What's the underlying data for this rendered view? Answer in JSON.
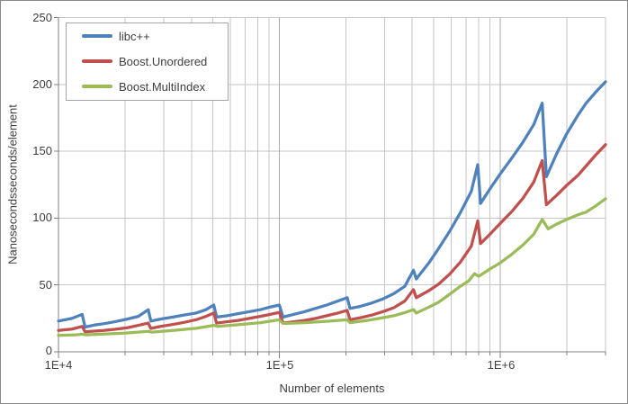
{
  "axes": {
    "y_title": "Nanosecondsseconds/element",
    "x_title": "Number of elements",
    "y_tick_labels": [
      "250",
      "200",
      "150",
      "100",
      "50",
      "0"
    ],
    "x_tick_labels": [
      "1E+4",
      "1E+5",
      "1E+6"
    ]
  },
  "style": {
    "gridline_minor_color": "#c6c6c6",
    "gridline_major_color": "#a9a9a9",
    "axis_color": "#808080",
    "text_color": "#3f3f3f",
    "plot_background": "#ffffff"
  },
  "chart_data": {
    "type": "line",
    "title": "",
    "xlabel": "Number of elements",
    "ylabel": "Nanosecondsseconds/element",
    "x_scale": "log",
    "xlim": [
      10000,
      3000000
    ],
    "ylim": [
      0,
      250
    ],
    "grid": true,
    "legend_position": "top-left-inside",
    "y_tick_values": [
      0,
      50,
      100,
      150,
      200,
      250
    ],
    "x_major_tick_values": [
      10000,
      100000,
      1000000
    ],
    "x_major_gridlines": [
      100000,
      1000000
    ],
    "x_minor_gridlines": [
      20000,
      30000,
      40000,
      50000,
      60000,
      70000,
      80000,
      90000,
      200000,
      300000,
      400000,
      500000,
      600000,
      700000,
      800000,
      900000,
      2000000,
      3000000
    ],
    "series": [
      {
        "name": "libc++",
        "color": "#4F81BD",
        "points": [
          [
            10000,
            23
          ],
          [
            11500,
            25
          ],
          [
            12800,
            28
          ],
          [
            13200,
            18.5
          ],
          [
            14500,
            20
          ],
          [
            16000,
            21
          ],
          [
            18000,
            22.5
          ],
          [
            20500,
            24.5
          ],
          [
            23000,
            26.5
          ],
          [
            25500,
            31.5
          ],
          [
            26200,
            23
          ],
          [
            29000,
            24.5
          ],
          [
            33000,
            26
          ],
          [
            37000,
            27.5
          ],
          [
            42000,
            29
          ],
          [
            46500,
            31.5
          ],
          [
            50500,
            35
          ],
          [
            52000,
            26
          ],
          [
            58000,
            27
          ],
          [
            65000,
            28.5
          ],
          [
            73000,
            30
          ],
          [
            82000,
            31.5
          ],
          [
            91000,
            33.5
          ],
          [
            100000,
            35
          ],
          [
            104000,
            26
          ],
          [
            116000,
            28
          ],
          [
            130000,
            30
          ],
          [
            146000,
            32.5
          ],
          [
            164000,
            35
          ],
          [
            184000,
            38
          ],
          [
            203000,
            40.5
          ],
          [
            209000,
            32.5
          ],
          [
            233000,
            34
          ],
          [
            262000,
            36.5
          ],
          [
            294000,
            39.5
          ],
          [
            330000,
            43.5
          ],
          [
            370000,
            49
          ],
          [
            405000,
            61
          ],
          [
            417000,
            54.5
          ],
          [
            478000,
            67
          ],
          [
            525000,
            77
          ],
          [
            590000,
            90
          ],
          [
            660000,
            104
          ],
          [
            740000,
            120
          ],
          [
            792000,
            140
          ],
          [
            815000,
            111
          ],
          [
            900000,
            122
          ],
          [
            1000000,
            133
          ],
          [
            1130000,
            145
          ],
          [
            1270000,
            157
          ],
          [
            1420000,
            170
          ],
          [
            1550000,
            186
          ],
          [
            1620000,
            131
          ],
          [
            1800000,
            148
          ],
          [
            2000000,
            163
          ],
          [
            2250000,
            177
          ],
          [
            2450000,
            186
          ],
          [
            2700000,
            194
          ],
          [
            3000000,
            202
          ]
        ]
      },
      {
        "name": "Boost.Unordered",
        "color": "#C0504D",
        "points": [
          [
            10000,
            16
          ],
          [
            11500,
            17
          ],
          [
            12800,
            19
          ],
          [
            13200,
            15
          ],
          [
            14500,
            15.5
          ],
          [
            16000,
            16
          ],
          [
            18000,
            16.8
          ],
          [
            20500,
            18
          ],
          [
            23000,
            19.8
          ],
          [
            25500,
            21.5
          ],
          [
            26200,
            17.5
          ],
          [
            29000,
            19
          ],
          [
            33000,
            20.5
          ],
          [
            37000,
            22
          ],
          [
            42000,
            24
          ],
          [
            46500,
            26.5
          ],
          [
            50500,
            29
          ],
          [
            52000,
            21.5
          ],
          [
            58000,
            22.5
          ],
          [
            65000,
            23.5
          ],
          [
            73000,
            25
          ],
          [
            82000,
            26.5
          ],
          [
            91000,
            28
          ],
          [
            100000,
            29.5
          ],
          [
            104000,
            21.5
          ],
          [
            116000,
            22.5
          ],
          [
            130000,
            23.5
          ],
          [
            146000,
            25
          ],
          [
            164000,
            27
          ],
          [
            184000,
            29
          ],
          [
            203000,
            31
          ],
          [
            209000,
            24
          ],
          [
            233000,
            25.5
          ],
          [
            262000,
            27.5
          ],
          [
            294000,
            30
          ],
          [
            330000,
            33
          ],
          [
            370000,
            38
          ],
          [
            405000,
            46.5
          ],
          [
            417000,
            40.5
          ],
          [
            478000,
            46
          ],
          [
            525000,
            50.5
          ],
          [
            590000,
            58
          ],
          [
            660000,
            67
          ],
          [
            740000,
            79
          ],
          [
            792000,
            98
          ],
          [
            815000,
            81
          ],
          [
            900000,
            88
          ],
          [
            1000000,
            96
          ],
          [
            1130000,
            105
          ],
          [
            1270000,
            115
          ],
          [
            1420000,
            127
          ],
          [
            1550000,
            143
          ],
          [
            1620000,
            110
          ],
          [
            1800000,
            117
          ],
          [
            2000000,
            124.5
          ],
          [
            2250000,
            132
          ],
          [
            2450000,
            139
          ],
          [
            2700000,
            147
          ],
          [
            3000000,
            155
          ]
        ]
      },
      {
        "name": "Boost.MultiIndex",
        "color": "#9BBB59",
        "points": [
          [
            10000,
            12.3
          ],
          [
            12000,
            12.7
          ],
          [
            12800,
            13.2
          ],
          [
            13300,
            12.7
          ],
          [
            16000,
            13.3
          ],
          [
            20000,
            14
          ],
          [
            25500,
            15.3
          ],
          [
            26500,
            14.7
          ],
          [
            33000,
            16
          ],
          [
            42000,
            17.6
          ],
          [
            50500,
            19.8
          ],
          [
            52500,
            19
          ],
          [
            65000,
            20.3
          ],
          [
            82000,
            21.8
          ],
          [
            100000,
            24
          ],
          [
            104000,
            21.2
          ],
          [
            130000,
            21.8
          ],
          [
            164000,
            22.8
          ],
          [
            203000,
            24
          ],
          [
            209000,
            21.8
          ],
          [
            250000,
            23.5
          ],
          [
            294000,
            25.5
          ],
          [
            330000,
            27
          ],
          [
            370000,
            29.3
          ],
          [
            405000,
            31.6
          ],
          [
            417000,
            29
          ],
          [
            478000,
            33.6
          ],
          [
            525000,
            37
          ],
          [
            590000,
            43
          ],
          [
            660000,
            49
          ],
          [
            720000,
            53
          ],
          [
            765000,
            58.5
          ],
          [
            800000,
            56.5
          ],
          [
            900000,
            62
          ],
          [
            1000000,
            66.5
          ],
          [
            1130000,
            73
          ],
          [
            1270000,
            80
          ],
          [
            1420000,
            88
          ],
          [
            1550000,
            99
          ],
          [
            1650000,
            92
          ],
          [
            1800000,
            95.5
          ],
          [
            2000000,
            99
          ],
          [
            2250000,
            102.5
          ],
          [
            2450000,
            104.5
          ],
          [
            2700000,
            109
          ],
          [
            3000000,
            114.5
          ]
        ]
      }
    ]
  }
}
